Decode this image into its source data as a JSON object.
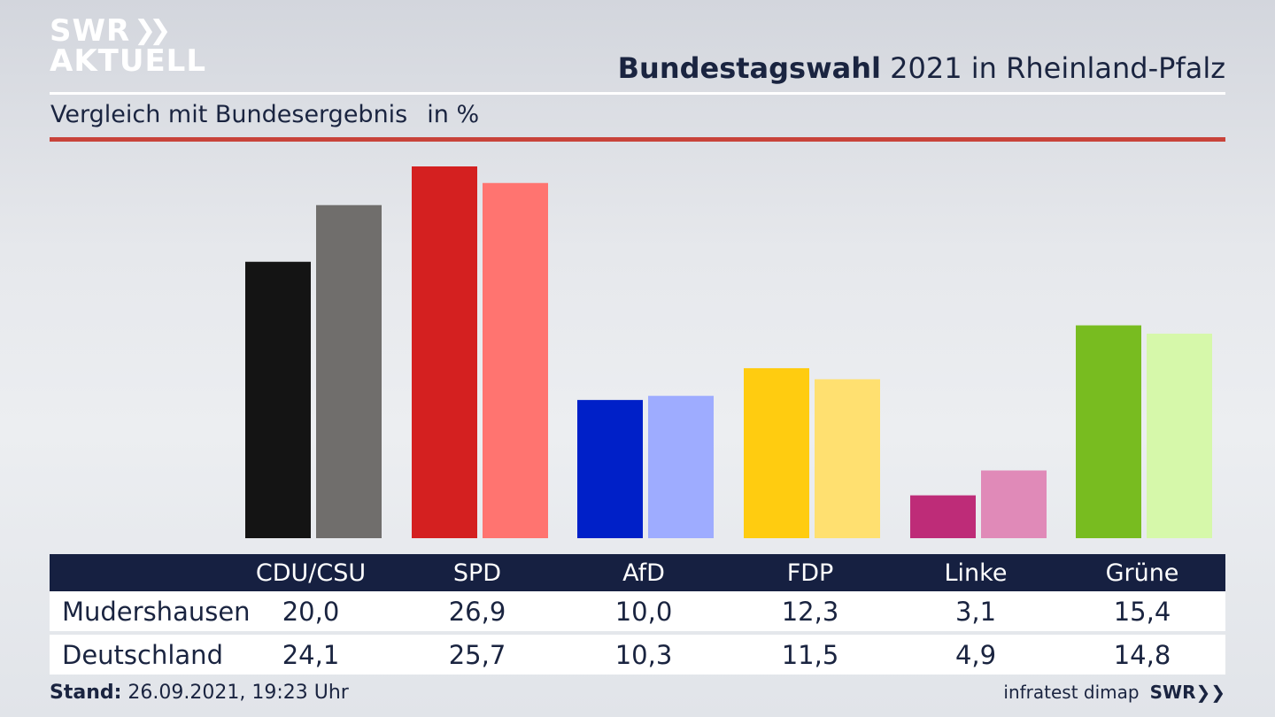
{
  "header": {
    "logo_line1": "SWR",
    "logo_line2": "AKTUELL",
    "title_bold": "Bundestagswahl",
    "title_rest": " 2021 in Rheinland-Pfalz",
    "subtitle": "Vergleich mit Bundesergebnis",
    "unit": "in %"
  },
  "colors": {
    "accent_rule": "#c8433a",
    "table_header": "#162041",
    "text": "#1a2440"
  },
  "chart_data": {
    "type": "bar",
    "categories": [
      "CDU/CSU",
      "SPD",
      "AfD",
      "FDP",
      "Linke",
      "Grüne"
    ],
    "series": [
      {
        "name": "Mudershausen",
        "values": [
          20.0,
          26.9,
          10.0,
          12.3,
          3.1,
          15.4
        ],
        "colors": [
          "#141414",
          "#d42020",
          "#0020c8",
          "#ffcc10",
          "#be2c78",
          "#78bc20"
        ]
      },
      {
        "name": "Deutschland",
        "values": [
          24.1,
          25.7,
          10.3,
          11.5,
          4.9,
          14.8
        ],
        "colors": [
          "#706e6c",
          "#ff7470",
          "#9eacff",
          "#ffe070",
          "#e08ab8",
          "#d6f8aa"
        ]
      }
    ],
    "title": "Bundestagswahl 2021 in Rheinland-Pfalz",
    "subtitle": "Vergleich mit Bundesergebnis",
    "ylabel": "in %",
    "ylim": [
      0,
      27
    ]
  },
  "table": {
    "headers": [
      "CDU/CSU",
      "SPD",
      "AfD",
      "FDP",
      "Linke",
      "Grüne"
    ],
    "rows": [
      {
        "label": "Mudershausen",
        "values": [
          "20,0",
          "26,9",
          "10,0",
          "12,3",
          "3,1",
          "15,4"
        ]
      },
      {
        "label": "Deutschland",
        "values": [
          "24,1",
          "25,7",
          "10,3",
          "11,5",
          "4,9",
          "14,8"
        ]
      }
    ]
  },
  "footer": {
    "stand_label": "Stand:",
    "stand_value": " 26.09.2021, 19:23 Uhr",
    "source": "infratest dimap",
    "source_brand": "SWR"
  }
}
